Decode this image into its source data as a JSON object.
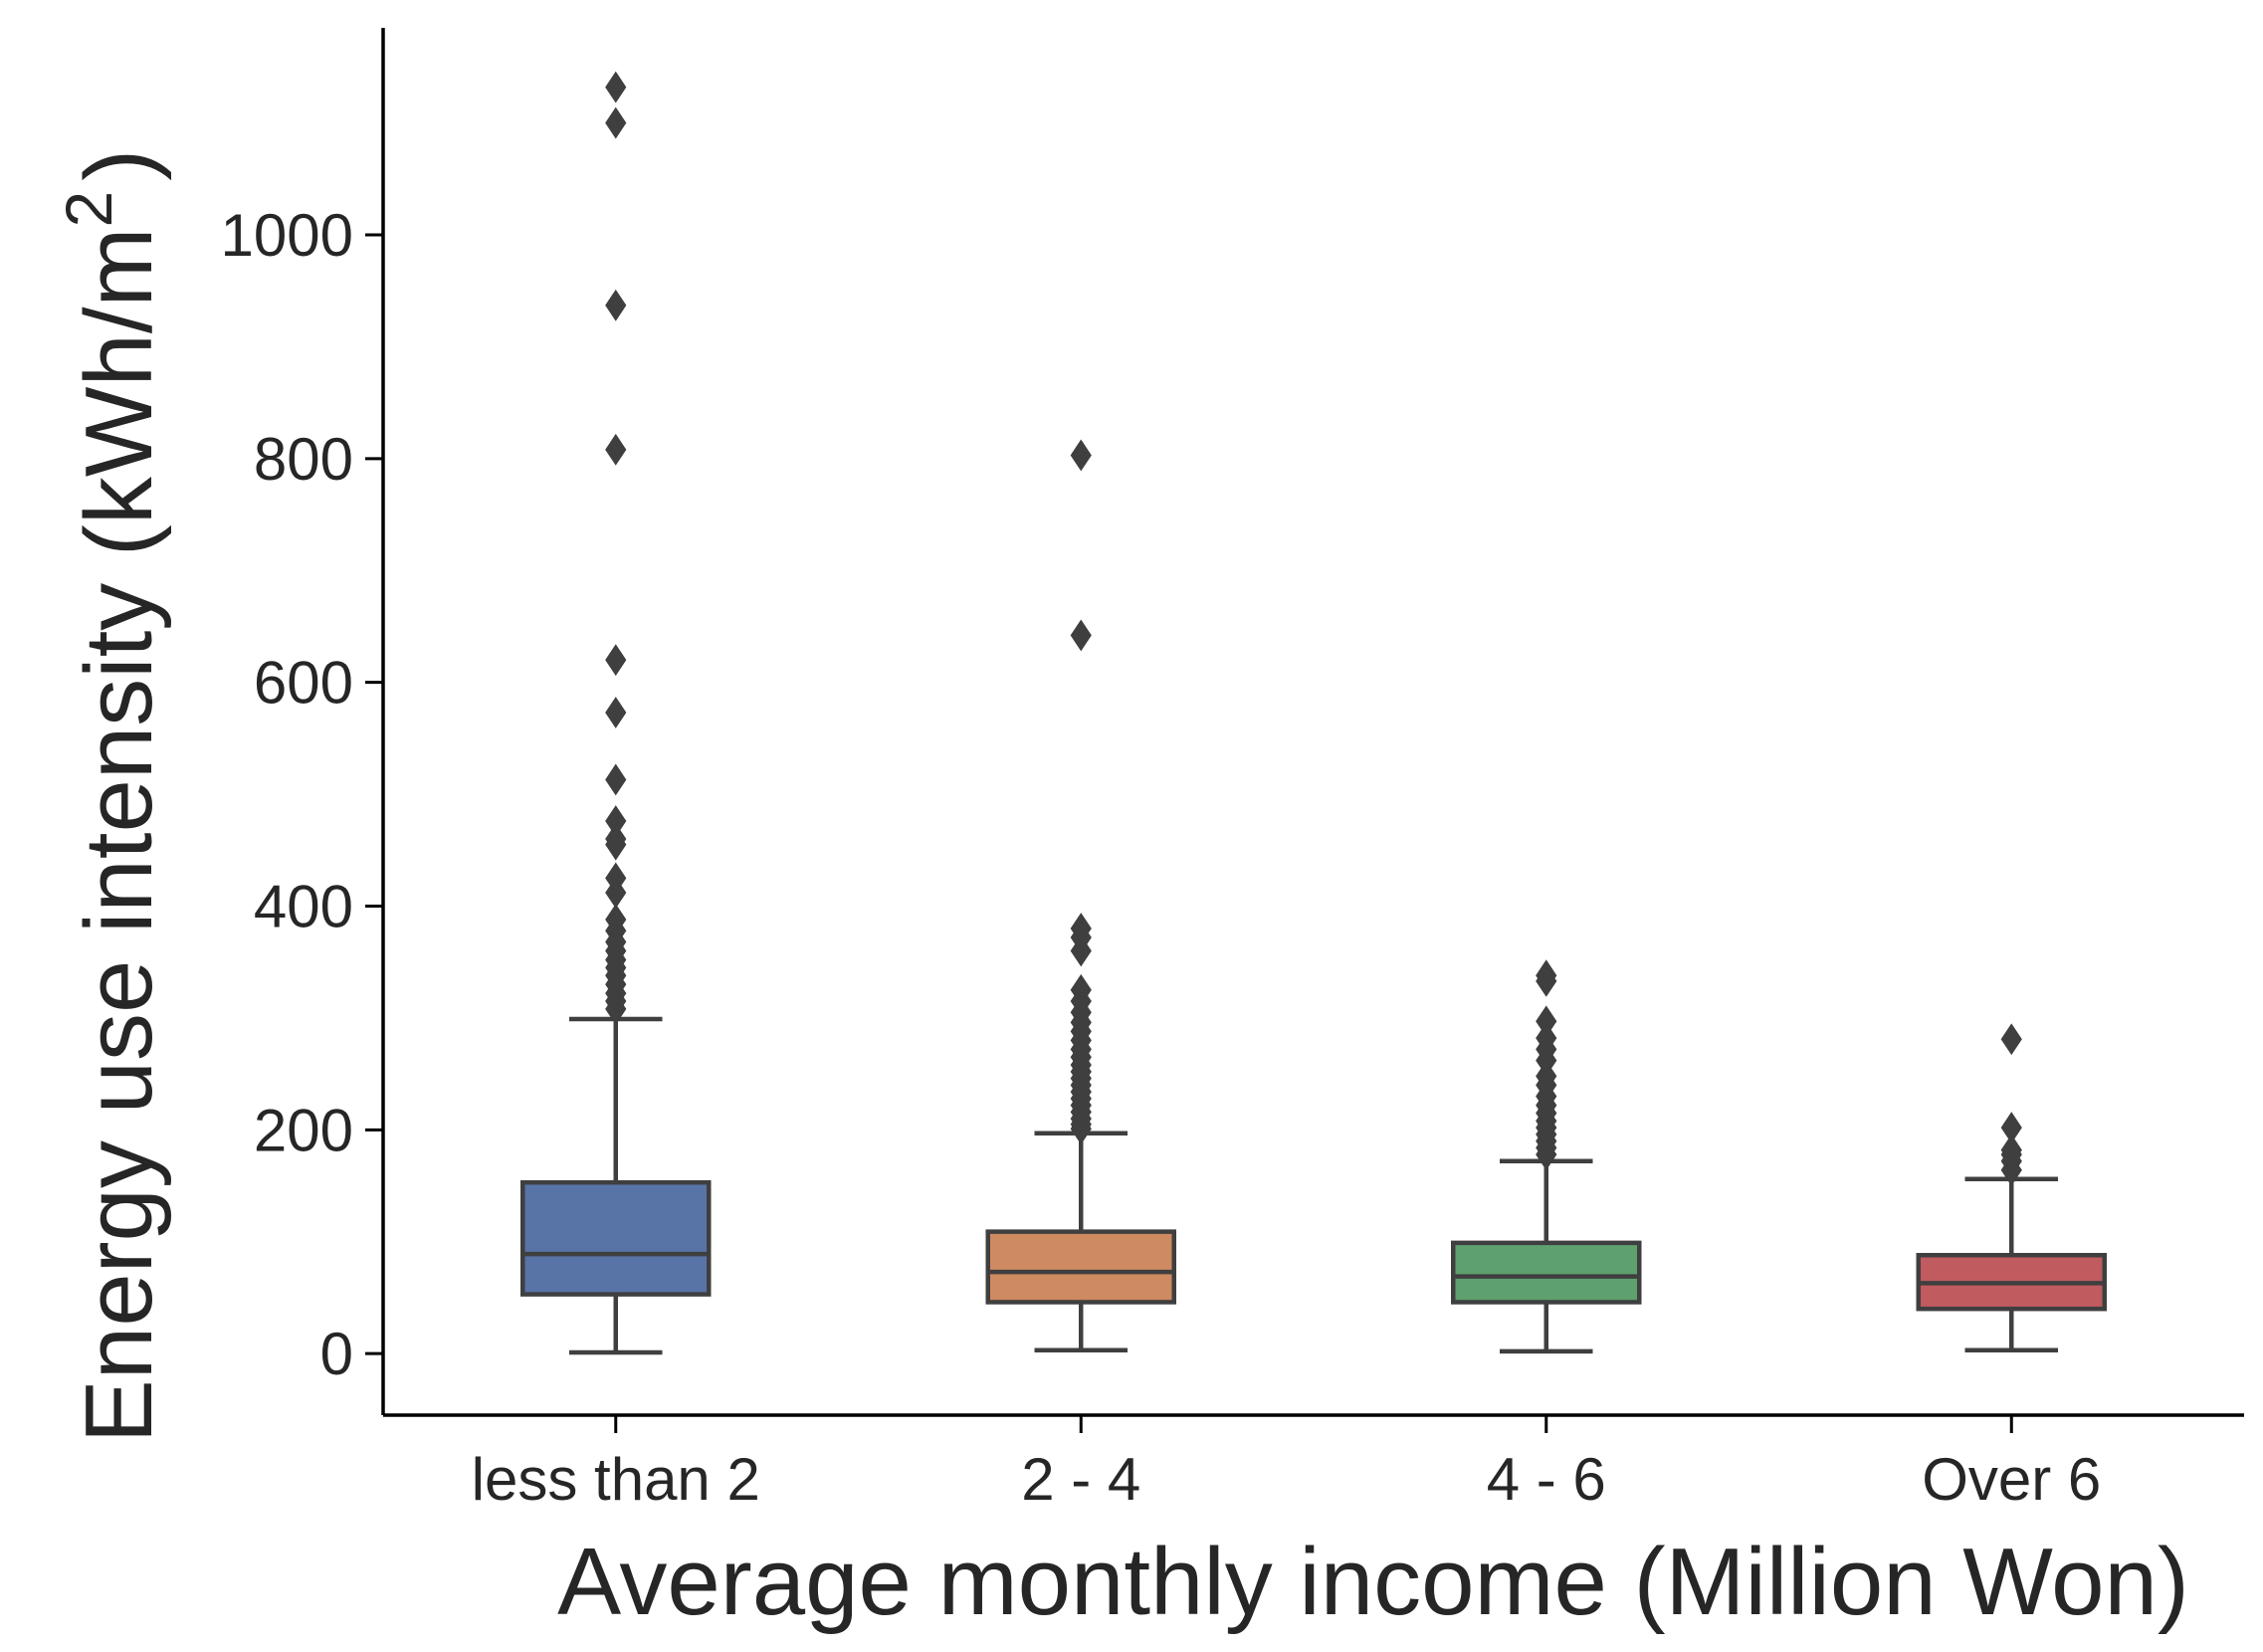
{
  "chart_data": {
    "type": "box",
    "xlabel": "Average monthly income (Million Won)",
    "ylabel": {
      "text": "Energy use intensity (kWh/m",
      "superscript": "2",
      "closing": ")"
    },
    "ylim": [
      -55,
      1185
    ],
    "yticks": [
      0,
      200,
      400,
      600,
      800,
      1000
    ],
    "ytick_labels": [
      "0",
      "200",
      "400",
      "600",
      "800",
      "1000"
    ],
    "grid": false,
    "categories": [
      "less than 2",
      "2 - 4",
      "4 - 6",
      "Over 6"
    ],
    "boxes": [
      {
        "category": "less than 2",
        "color": "#5874a7",
        "whisker_low": 1,
        "q1": 53,
        "median": 89,
        "q3": 153,
        "whisker_high": 299,
        "outliers": [
          1132,
          1100,
          937,
          808,
          620,
          573,
          513,
          476,
          460,
          455,
          425,
          412,
          388,
          378,
          368,
          360,
          352,
          345,
          338,
          330,
          322,
          315,
          308
        ]
      },
      {
        "category": "2 - 4",
        "color": "#ce8a61",
        "whisker_low": 3,
        "q1": 46,
        "median": 73,
        "q3": 109,
        "whisker_high": 197,
        "outliers": [
          803,
          642,
          380,
          372,
          360,
          325,
          315,
          305,
          296,
          288,
          280,
          272,
          265,
          258,
          252,
          246,
          240,
          234,
          228,
          222,
          216,
          210,
          205,
          201
        ]
      },
      {
        "category": "4 - 6",
        "color": "#5ea06e",
        "whisker_low": 2,
        "q1": 46,
        "median": 69,
        "q3": 99,
        "whisker_high": 172,
        "outliers": [
          338,
          333,
          297,
          282,
          272,
          262,
          248,
          240,
          230,
          222,
          215,
          208,
          202,
          196,
          190,
          184,
          178
        ]
      },
      {
        "category": "Over 6",
        "color": "#c05b5f",
        "whisker_low": 3,
        "q1": 40,
        "median": 63,
        "q3": 88,
        "whisker_high": 156,
        "outliers": [
          281,
          202,
          182,
          178,
          172,
          164
        ]
      }
    ]
  }
}
